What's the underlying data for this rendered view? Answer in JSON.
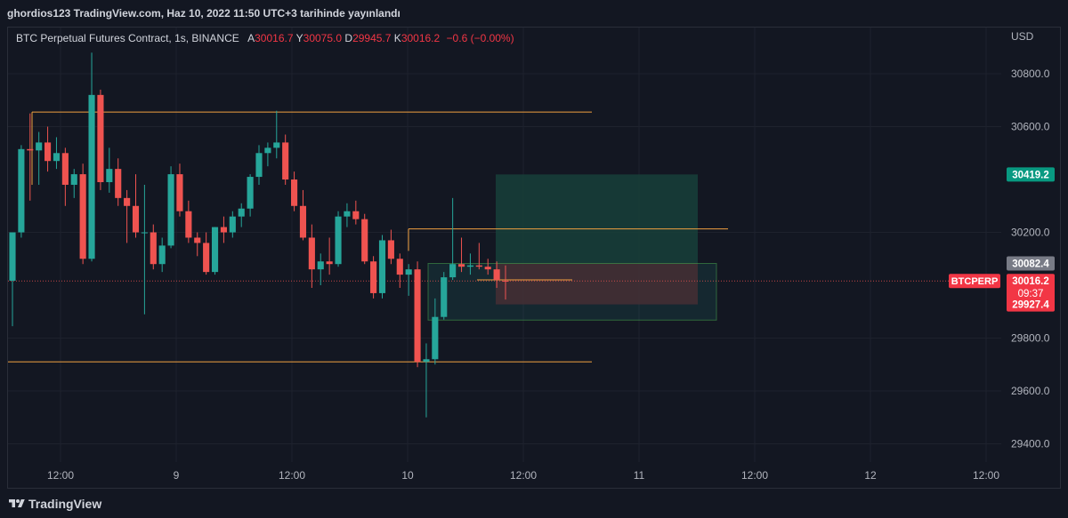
{
  "header": {
    "publish_line": "ghordios123 TradingView.com, Haz 10, 2022 11:50 UTC+3 tarihinde yayınlandı"
  },
  "legend": {
    "symbol": "BTC Perpetual Futures Contract, 1s, BINANCE",
    "open_label": "A",
    "open": "30016.7",
    "high_label": "Y",
    "high": "30075.0",
    "low_label": "D",
    "low": "29945.7",
    "close_label": "K",
    "close": "30016.2",
    "change": "−0.6 (−0.00%)"
  },
  "brand": {
    "name": "TradingView"
  },
  "colors": {
    "background": "#131722",
    "up": "#26a69a",
    "down": "#ef5350",
    "level_line": "#f0a040",
    "target_zone": "#17403a",
    "stop_zone": "#4a1f26",
    "price_label_green": "#089981",
    "price_label_red": "#f23645",
    "price_label_gray": "#787b86"
  },
  "chart_data": {
    "type": "candlestick",
    "symbol": "BTCPERP",
    "currency": "USD",
    "y_ticks": [
      30800.0,
      30600.0,
      30200.0,
      29800.0,
      29600.0,
      29400.0
    ],
    "y_tick_labels": [
      "30800.0",
      "30600.0",
      "30200.0",
      "29800.0",
      "29600.0",
      "29400.0"
    ],
    "x_tick_labels": [
      "12:00",
      "9",
      "12:00",
      "10",
      "12:00",
      "11",
      "12:00",
      "12",
      "12:00"
    ],
    "ylim": [
      29331,
      30975
    ],
    "price_labels": {
      "target": "30419.2",
      "entry": "30082.4",
      "current_symbol": "BTCPERP",
      "current": "30016.2",
      "countdown": "09:37",
      "stop": "29927.4"
    },
    "candles": [
      {
        "o": 30017,
        "h": 30200,
        "l": 29845,
        "c": 30200
      },
      {
        "o": 30200,
        "h": 30530,
        "l": 30180,
        "c": 30515
      },
      {
        "o": 30515,
        "h": 30650,
        "l": 30320,
        "c": 30510
      },
      {
        "o": 30510,
        "h": 30580,
        "l": 30380,
        "c": 30540
      },
      {
        "o": 30540,
        "h": 30600,
        "l": 30430,
        "c": 30470
      },
      {
        "o": 30470,
        "h": 30560,
        "l": 30440,
        "c": 30500
      },
      {
        "o": 30500,
        "h": 30520,
        "l": 30300,
        "c": 30380
      },
      {
        "o": 30380,
        "h": 30440,
        "l": 30330,
        "c": 30420
      },
      {
        "o": 30420,
        "h": 30460,
        "l": 30080,
        "c": 30100
      },
      {
        "o": 30100,
        "h": 30880,
        "l": 30090,
        "c": 30720
      },
      {
        "o": 30720,
        "h": 30740,
        "l": 30360,
        "c": 30390
      },
      {
        "o": 30390,
        "h": 30520,
        "l": 30350,
        "c": 30440
      },
      {
        "o": 30440,
        "h": 30480,
        "l": 30300,
        "c": 30330
      },
      {
        "o": 30330,
        "h": 30360,
        "l": 30160,
        "c": 30300
      },
      {
        "o": 30300,
        "h": 30420,
        "l": 30180,
        "c": 30200
      },
      {
        "o": 30200,
        "h": 30380,
        "l": 29890,
        "c": 30200
      },
      {
        "o": 30200,
        "h": 30230,
        "l": 30060,
        "c": 30080
      },
      {
        "o": 30080,
        "h": 30180,
        "l": 30050,
        "c": 30150
      },
      {
        "o": 30150,
        "h": 30450,
        "l": 30140,
        "c": 30420
      },
      {
        "o": 30420,
        "h": 30460,
        "l": 30260,
        "c": 30280
      },
      {
        "o": 30280,
        "h": 30320,
        "l": 30160,
        "c": 30180
      },
      {
        "o": 30180,
        "h": 30200,
        "l": 30110,
        "c": 30160
      },
      {
        "o": 30160,
        "h": 30200,
        "l": 30040,
        "c": 30050
      },
      {
        "o": 30050,
        "h": 30220,
        "l": 30040,
        "c": 30220
      },
      {
        "o": 30220,
        "h": 30260,
        "l": 30160,
        "c": 30200
      },
      {
        "o": 30200,
        "h": 30280,
        "l": 30180,
        "c": 30260
      },
      {
        "o": 30260,
        "h": 30310,
        "l": 30220,
        "c": 30290
      },
      {
        "o": 30290,
        "h": 30420,
        "l": 30260,
        "c": 30410
      },
      {
        "o": 30410,
        "h": 30530,
        "l": 30380,
        "c": 30500
      },
      {
        "o": 30500,
        "h": 30540,
        "l": 30450,
        "c": 30520
      },
      {
        "o": 30520,
        "h": 30660,
        "l": 30480,
        "c": 30540
      },
      {
        "o": 30540,
        "h": 30570,
        "l": 30380,
        "c": 30400
      },
      {
        "o": 30400,
        "h": 30430,
        "l": 30280,
        "c": 30300
      },
      {
        "o": 30300,
        "h": 30360,
        "l": 30170,
        "c": 30180
      },
      {
        "o": 30180,
        "h": 30230,
        "l": 29990,
        "c": 30060
      },
      {
        "o": 30060,
        "h": 30120,
        "l": 30000,
        "c": 30090
      },
      {
        "o": 30090,
        "h": 30180,
        "l": 30040,
        "c": 30080
      },
      {
        "o": 30080,
        "h": 30280,
        "l": 30070,
        "c": 30260
      },
      {
        "o": 30260,
        "h": 30310,
        "l": 30220,
        "c": 30280
      },
      {
        "o": 30280,
        "h": 30320,
        "l": 30230,
        "c": 30250
      },
      {
        "o": 30250,
        "h": 30270,
        "l": 30080,
        "c": 30090
      },
      {
        "o": 30090,
        "h": 30110,
        "l": 29950,
        "c": 29970
      },
      {
        "o": 29970,
        "h": 30190,
        "l": 29950,
        "c": 30170
      },
      {
        "o": 30170,
        "h": 30210,
        "l": 30080,
        "c": 30100
      },
      {
        "o": 30100,
        "h": 30120,
        "l": 29990,
        "c": 30040
      },
      {
        "o": 30040,
        "h": 30080,
        "l": 29960,
        "c": 30060
      },
      {
        "o": 30060,
        "h": 30090,
        "l": 29690,
        "c": 29710
      },
      {
        "o": 29710,
        "h": 29780,
        "l": 29500,
        "c": 29720
      },
      {
        "o": 29720,
        "h": 29950,
        "l": 29700,
        "c": 29880
      },
      {
        "o": 29880,
        "h": 30050,
        "l": 29870,
        "c": 30030
      },
      {
        "o": 30030,
        "h": 30330,
        "l": 30020,
        "c": 30080
      },
      {
        "o": 30080,
        "h": 30180,
        "l": 30050,
        "c": 30070
      },
      {
        "o": 30070,
        "h": 30120,
        "l": 30040,
        "c": 30075
      },
      {
        "o": 30075,
        "h": 30160,
        "l": 30060,
        "c": 30070
      },
      {
        "o": 30070,
        "h": 30100,
        "l": 30040,
        "c": 30060
      },
      {
        "o": 30060,
        "h": 30090,
        "l": 29990,
        "c": 30020
      },
      {
        "o": 30016.7,
        "h": 30075.0,
        "l": 29945.7,
        "c": 30016.2
      }
    ],
    "levels": [
      30655,
      30213,
      29710
    ],
    "position": {
      "entry": 30082.4,
      "target": 30419.2,
      "stop": 29927.4
    }
  }
}
